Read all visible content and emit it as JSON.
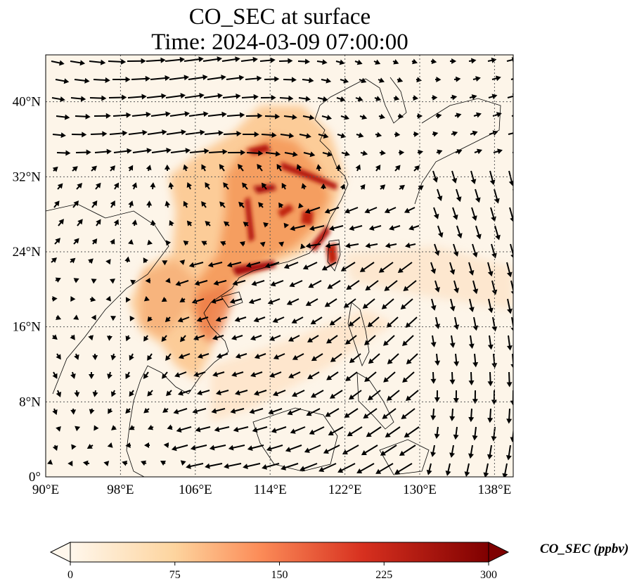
{
  "title": "CO_SEC at surface",
  "subtitle": "Time: 2024-03-09 07:00:00",
  "map": {
    "lon_range": [
      90,
      140
    ],
    "lat_range": [
      0,
      45
    ],
    "lon_ticks": [
      "90°E",
      "98°E",
      "106°E",
      "114°E",
      "122°E",
      "130°E",
      "138°E"
    ],
    "lat_ticks": [
      "0°",
      "8°N",
      "16°N",
      "24°N",
      "32°N",
      "40°N"
    ],
    "gridlines": "dotted",
    "colors": {
      "background": "#fdf5e9",
      "plume": "#f08040",
      "hot": "#a01010",
      "coast": "#000000"
    }
  },
  "colorbar": {
    "label": "CO_SEC (ppbv)",
    "ticks": [
      "0",
      "75",
      "150",
      "225",
      "300"
    ],
    "extend": "both",
    "cmap": "OrRd-like (cream to dark red)"
  }
}
